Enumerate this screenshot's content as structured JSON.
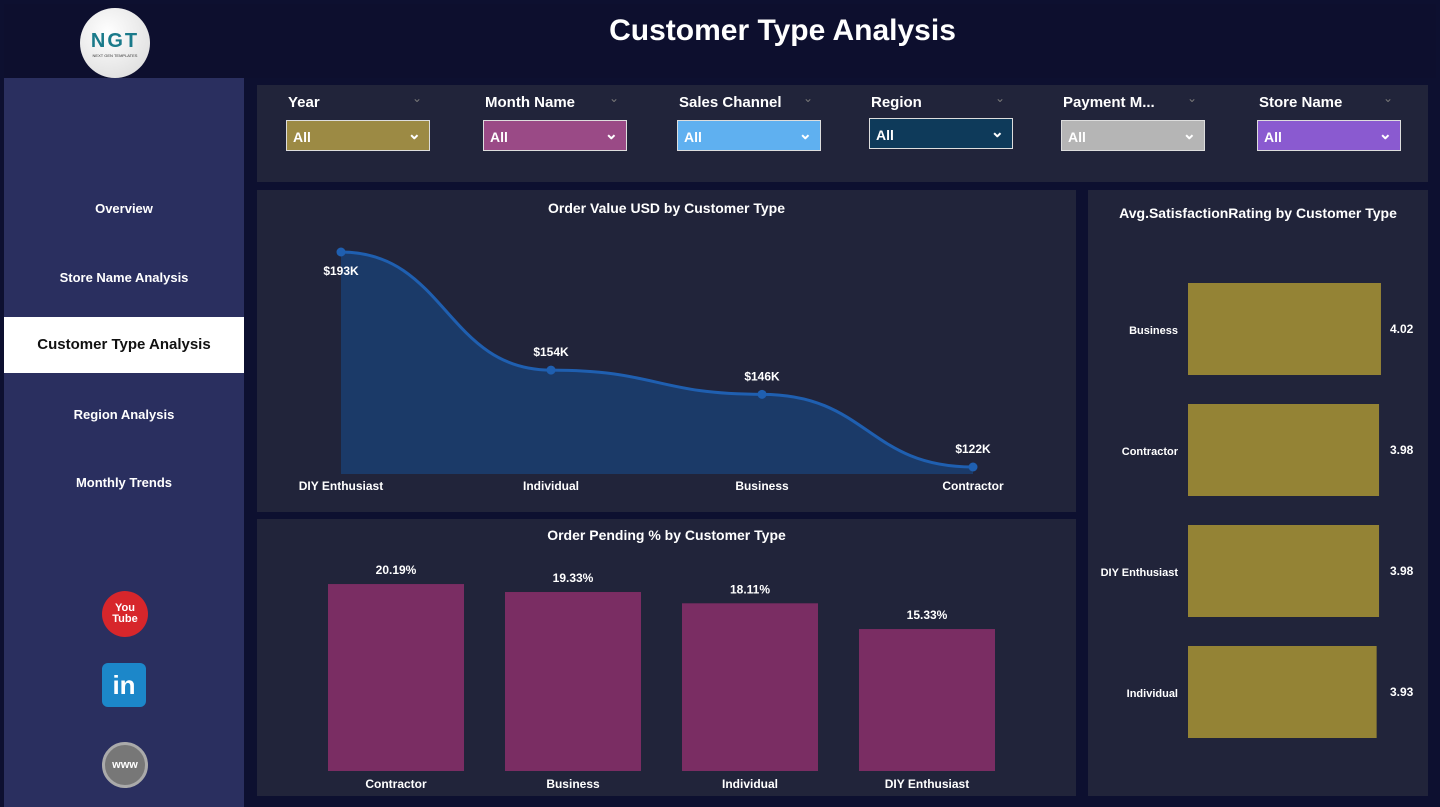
{
  "header": {
    "title": "Customer Type Analysis",
    "logo_text": "NGT",
    "logo_subtext": "NEXT GEN TEMPLATES"
  },
  "sidebar": {
    "items": [
      {
        "label": "Overview",
        "active": false
      },
      {
        "label": "Store Name Analysis",
        "active": false
      },
      {
        "label": "Customer Type Analysis",
        "active": true
      },
      {
        "label": "Region Analysis",
        "active": false
      },
      {
        "label": "Monthly Trends",
        "active": false
      }
    ],
    "social": [
      {
        "icon": "youtube-icon",
        "text": "You Tube",
        "color": "#d7262b"
      },
      {
        "icon": "linkedin-icon",
        "text": "in",
        "color": "#1c87c9"
      },
      {
        "icon": "globe-icon",
        "text": "www",
        "color": "#777777"
      }
    ]
  },
  "filters": [
    {
      "label": "Year",
      "value": "All",
      "color": "#9c8a44"
    },
    {
      "label": "Month Name",
      "value": "All",
      "color": "#9a4a86"
    },
    {
      "label": "Sales Channel",
      "value": "All",
      "color": "#5fb0f0"
    },
    {
      "label": "Region",
      "value": "All",
      "color": "#0e3a5a"
    },
    {
      "label": "Payment M...",
      "value": "All",
      "color": "#b5b5b5"
    },
    {
      "label": "Store Name",
      "value": "All",
      "color": "#8a5ad0"
    }
  ],
  "chart_data": [
    {
      "type": "area",
      "title": "Order Value USD by Customer Type",
      "categories": [
        "DIY Enthusiast",
        "Individual",
        "Business",
        "Contractor"
      ],
      "values": [
        193,
        154,
        146,
        122
      ],
      "labels": [
        "$193K",
        "$154K",
        "$146K",
        "$122K"
      ],
      "unit": "USD thousands",
      "color": "#1f5fb0"
    },
    {
      "type": "bar",
      "title": "Order Pending % by Customer Type",
      "categories": [
        "Contractor",
        "Business",
        "Individual",
        "DIY Enthusiast"
      ],
      "values": [
        20.19,
        19.33,
        18.11,
        15.33
      ],
      "labels": [
        "20.19%",
        "19.33%",
        "18.11%",
        "15.33%"
      ],
      "color": "#7a2d63"
    },
    {
      "type": "bar",
      "orientation": "horizontal",
      "title": "Avg.SatisfactionRating by Customer Type",
      "categories": [
        "Business",
        "Contractor",
        "DIY Enthusiast",
        "Individual"
      ],
      "values": [
        4.02,
        3.98,
        3.98,
        3.93
      ],
      "labels": [
        "4.02",
        "3.98",
        "3.98",
        "3.93"
      ],
      "color": "#948335"
    }
  ]
}
